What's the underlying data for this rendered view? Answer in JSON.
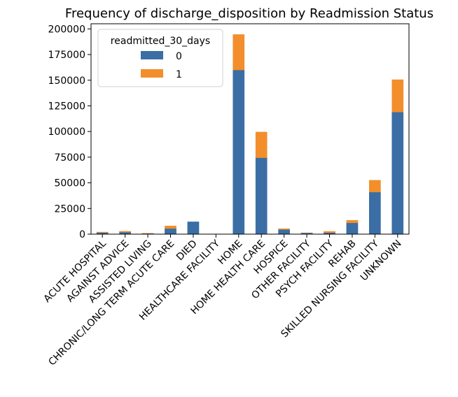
{
  "chart_data": {
    "type": "bar",
    "stacked": true,
    "title": "Frequency of discharge_disposition by Readmission Status",
    "xlabel": "",
    "ylabel": "",
    "ylim": [
      0,
      205000
    ],
    "yticks": [
      0,
      25000,
      50000,
      75000,
      100000,
      125000,
      150000,
      175000,
      200000
    ],
    "yticklabels": [
      "0",
      "25000",
      "50000",
      "75000",
      "100000",
      "125000",
      "150000",
      "175000",
      "200000"
    ],
    "categories": [
      "ACUTE HOSPITAL",
      "AGAINST ADVICE",
      "ASSISTED LIVING",
      "CHRONIC/LONG TERM ACUTE CARE",
      "DIED",
      "HEALTHCARE FACILITY",
      "HOME",
      "HOME HEALTH CARE",
      "HOSPICE",
      "OTHER FACILITY",
      "PSYCH FACILITY",
      "REHAB",
      "SKILLED NURSING FACILITY",
      "UNKNOWN"
    ],
    "legend": {
      "title": "readmitted_30_days",
      "position": "top-left"
    },
    "series": [
      {
        "name": "0",
        "color": "#3a6ea5",
        "values": [
          1500,
          2000,
          700,
          5500,
          12000,
          50,
          160000,
          74500,
          4500,
          1200,
          1500,
          11000,
          41000,
          119000
        ]
      },
      {
        "name": "1",
        "color": "#f28e2b",
        "values": [
          500,
          800,
          100,
          2500,
          0,
          10,
          34500,
          25000,
          800,
          100,
          1200,
          2500,
          11500,
          31500
        ]
      }
    ]
  }
}
